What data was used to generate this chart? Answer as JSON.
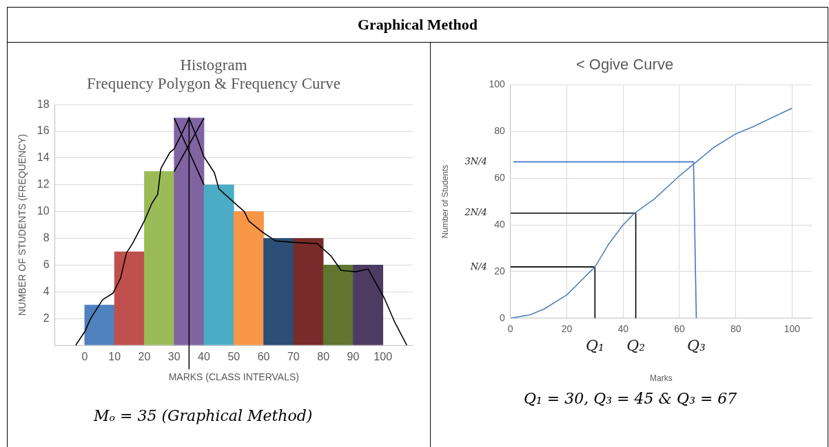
{
  "chart_data": [
    {
      "type": "histogram",
      "title": "Histogram\nFrequency Polygon & Frequency Curve",
      "xlabel": "MARKS (CLASS INTERVALS)",
      "ylabel": "NUMBER OF STUDENTS (FREQUENCY)",
      "bins": [
        0,
        10,
        20,
        30,
        40,
        50,
        60,
        70,
        80,
        90,
        100
      ],
      "values": [
        3,
        7,
        13,
        17,
        12,
        10,
        8,
        8,
        6,
        6
      ],
      "colors": [
        "#4f81bd",
        "#c0504d",
        "#9bbb59",
        "#8064a2",
        "#4bacc6",
        "#f79646",
        "#2c4d75",
        "#772c2a",
        "#5f7530",
        "#4d3b62"
      ],
      "series": [
        {
          "type": "line",
          "color": "#000000",
          "x": [
            -3,
            0,
            2,
            6,
            9.5,
            12,
            14,
            16,
            20,
            22.5,
            24.5,
            25.5,
            28.5,
            30,
            32.5,
            35,
            37.5,
            40,
            43.5,
            45,
            50,
            53.5,
            55,
            60,
            64,
            70,
            78,
            82.5,
            86,
            91,
            95,
            100.5,
            104,
            108
          ],
          "values": [
            0,
            1,
            2,
            3.4,
            3.9,
            5,
            6.9,
            7.6,
            9.3,
            10.6,
            11.3,
            13.2,
            14.4,
            14.7,
            15.8,
            17,
            15.6,
            14.1,
            12.9,
            11.7,
            10.7,
            10,
            9.3,
            8.4,
            7.8,
            7.7,
            7.6,
            6.7,
            5.6,
            5.5,
            5.7,
            3.5,
            1.7,
            0
          ]
        },
        {
          "type": "line",
          "color": "#000000",
          "x": [
            30,
            40
          ],
          "values": [
            13,
            17
          ]
        },
        {
          "type": "line",
          "color": "#000000",
          "x": [
            30,
            40
          ],
          "values": [
            17,
            12
          ]
        }
      ],
      "xlim": [
        -10,
        110
      ],
      "xticks": [
        0,
        10,
        20,
        30,
        40,
        50,
        60,
        70,
        80,
        90,
        100
      ],
      "ylim": [
        0,
        18
      ],
      "yticks": [
        {
          "value": 0,
          "label": null
        },
        2,
        4,
        6,
        8,
        10,
        12,
        14,
        16,
        18
      ],
      "grid": "y",
      "legend": false,
      "marker": "none",
      "ref_lines": [
        {
          "axis": "x",
          "value": 35,
          "color": "#000000"
        }
      ],
      "annotations": [
        "Graphical Method",
        "Mₒ = 35 (Graphical Method)"
      ]
    },
    {
      "type": "line",
      "title": "< Ogive Curve",
      "xlabel": "Marks",
      "ylabel": "Number of Students",
      "series": [
        {
          "color": "#4f81bd",
          "x": [
            0,
            7,
            12,
            20,
            25,
            30,
            35,
            40,
            44,
            51,
            60,
            65,
            72,
            80,
            86,
            100
          ],
          "values": [
            0,
            1.5,
            4,
            10,
            16,
            22,
            32,
            40,
            45,
            51,
            61,
            66,
            73,
            79,
            82,
            90
          ]
        },
        {
          "color": "#000000",
          "x": [
            0,
            30,
            30
          ],
          "values": [
            22,
            22,
            0
          ]
        },
        {
          "color": "#000000",
          "x": [
            0,
            44.5,
            44.5
          ],
          "values": [
            45,
            45,
            0
          ]
        },
        {
          "color": "#4472c4",
          "x": [
            1,
            65,
            66
          ],
          "values": [
            67,
            67,
            0
          ]
        }
      ],
      "xlim": [
        0,
        107
      ],
      "xticks": [
        0,
        20,
        40,
        60,
        80,
        100
      ],
      "ylim": [
        0,
        100
      ],
      "yticks": [
        0,
        20,
        40,
        60,
        80,
        100
      ],
      "grid": true,
      "legend": false,
      "marker": "none",
      "annotations": [
        {
          "text": "N/4",
          "x": 0,
          "y": 22
        },
        {
          "text": "2N/4",
          "x": 0,
          "y": 45
        },
        {
          "text": "3N/4",
          "x": 0,
          "y": 67
        },
        {
          "text": "Q₁",
          "x": 30,
          "y": 0
        },
        {
          "text": "Q₂",
          "x": 44.5,
          "y": 0
        },
        {
          "text": "Q₃",
          "x": 66,
          "y": 0
        },
        "Q₁ = 30, Q₃ = 45 & Q₃ = 67"
      ]
    }
  ]
}
